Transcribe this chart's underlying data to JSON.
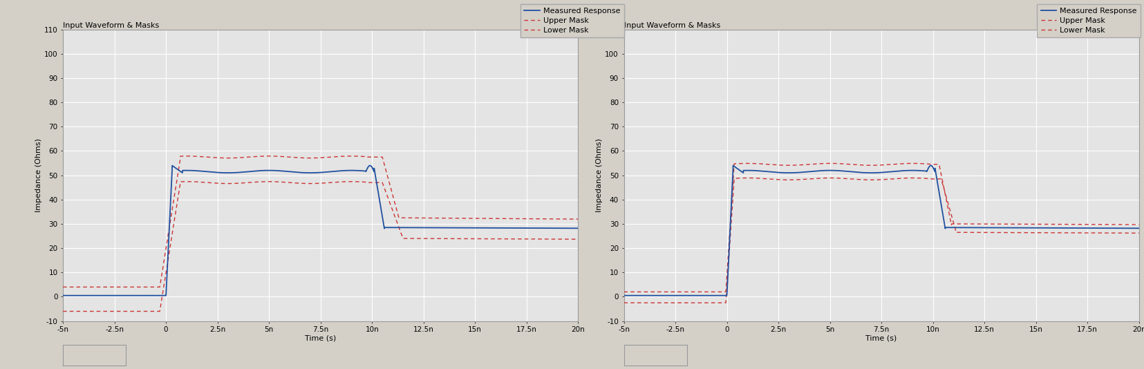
{
  "plot_title": "Input Waveform & Masks",
  "xlabel": "Time (s)",
  "ylabel": "Impedance (Ohms)",
  "xlim_min": -5e-09,
  "xlim_max": 2e-08,
  "ylim_min": -10,
  "ylim_max": 110,
  "yticks": [
    -10,
    0,
    10,
    20,
    30,
    40,
    50,
    60,
    70,
    80,
    90,
    100,
    110
  ],
  "xtick_labels": [
    "-5n",
    "-2.5n",
    "0",
    "2.5n",
    "5n",
    "7.5n",
    "10n",
    "12.5n",
    "15n",
    "17.5n",
    "20n"
  ],
  "xtick_vals": [
    -5e-09,
    -2.5e-09,
    0,
    2.5e-09,
    5e-09,
    7.5e-09,
    1e-08,
    1.25e-08,
    1.5e-08,
    1.75e-08,
    2e-08
  ],
  "bg_color": "#d4d0c8",
  "plot_bg_color": "#e4e4e4",
  "grid_color": "#ffffff",
  "measured_color": "#2050a0",
  "mask_color": "#cc3333",
  "legend_labels": [
    "Measured Response",
    "Upper Mask",
    "Lower Mask"
  ],
  "fig_width": 16.56,
  "fig_height": 5.34,
  "dpi": 100
}
